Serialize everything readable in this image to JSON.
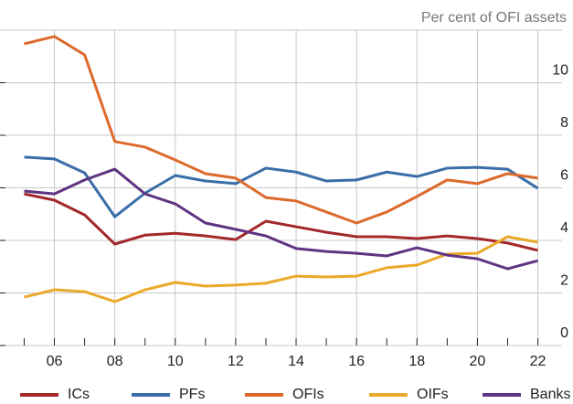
{
  "chart_data": {
    "type": "line",
    "title": "Per cent of OFI assets",
    "x": [
      2005,
      2006,
      2007,
      2008,
      2009,
      2010,
      2011,
      2012,
      2013,
      2014,
      2015,
      2016,
      2017,
      2018,
      2019,
      2020,
      2021,
      2022
    ],
    "series": [
      {
        "name": "ICs",
        "color": "#a2282a",
        "values": [
          5.77,
          5.53,
          4.97,
          3.86,
          4.2,
          4.27,
          4.17,
          4.03,
          4.73,
          4.52,
          4.31,
          4.14,
          4.14,
          4.07,
          4.17,
          4.07,
          3.9,
          3.62
        ]
      },
      {
        "name": "PFs",
        "color": "#3a6ea8",
        "values": [
          7.17,
          7.1,
          6.57,
          4.9,
          5.8,
          6.47,
          6.26,
          6.16,
          6.75,
          6.6,
          6.26,
          6.3,
          6.6,
          6.43,
          6.75,
          6.78,
          6.71,
          5.98
        ]
      },
      {
        "name": "OFIs",
        "color": "#dc6a2c",
        "values": [
          11.48,
          11.76,
          11.06,
          7.76,
          7.55,
          7.06,
          6.54,
          6.37,
          5.63,
          5.5,
          5.08,
          4.66,
          5.08,
          5.67,
          6.3,
          6.16,
          6.54,
          6.37
        ]
      },
      {
        "name": "OIFs",
        "color": "#eaa92a",
        "values": [
          1.84,
          2.12,
          2.05,
          1.67,
          2.12,
          2.4,
          2.26,
          2.3,
          2.37,
          2.64,
          2.61,
          2.64,
          2.96,
          3.06,
          3.48,
          3.51,
          4.14,
          3.93
        ]
      },
      {
        "name": "Banks",
        "color": "#5f3482",
        "values": [
          5.88,
          5.77,
          6.3,
          6.71,
          5.77,
          5.39,
          4.66,
          4.42,
          4.17,
          3.69,
          3.58,
          3.51,
          3.41,
          3.72,
          3.44,
          3.3,
          2.92,
          3.23
        ]
      }
    ],
    "xlim": [
      2004.2,
      2022.8
    ],
    "xticks": [
      {
        "value": 2006,
        "label": "06"
      },
      {
        "value": 2008,
        "label": "08"
      },
      {
        "value": 2010,
        "label": "10"
      },
      {
        "value": 2012,
        "label": "12"
      },
      {
        "value": 2014,
        "label": "14"
      },
      {
        "value": 2016,
        "label": "16"
      },
      {
        "value": 2018,
        "label": "18"
      },
      {
        "value": 2020,
        "label": "20"
      },
      {
        "value": 2022,
        "label": "22"
      }
    ],
    "ylim": [
      0,
      12
    ],
    "yticks": [
      0,
      2,
      4,
      6,
      8,
      10
    ],
    "grid": true
  }
}
